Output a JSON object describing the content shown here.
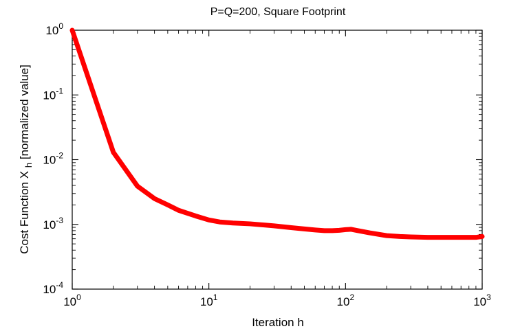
{
  "chart_data": {
    "type": "line",
    "title": "P=Q=200, Square Footprint",
    "xlabel": "Iteration h",
    "ylabel": {
      "prefix": "Cost Function X",
      "subscript": "h",
      "suffix": " [normalized value]"
    },
    "x_scale": "log",
    "y_scale": "log",
    "xlim": [
      1,
      1000
    ],
    "ylim": [
      0.0001,
      1
    ],
    "grid": false,
    "x_ticks": [
      {
        "value": 1,
        "base": "10",
        "exponent": "0"
      },
      {
        "value": 10,
        "base": "10",
        "exponent": "1"
      },
      {
        "value": 100,
        "base": "10",
        "exponent": "2"
      },
      {
        "value": 1000,
        "base": "10",
        "exponent": "3"
      }
    ],
    "y_ticks": [
      {
        "value": 1,
        "base": "10",
        "exponent": "0"
      },
      {
        "value": 0.1,
        "base": "10",
        "exponent": "-1"
      },
      {
        "value": 0.01,
        "base": "10",
        "exponent": "-2"
      },
      {
        "value": 0.001,
        "base": "10",
        "exponent": "-3"
      },
      {
        "value": 0.0001,
        "base": "10",
        "exponent": "-4"
      }
    ],
    "series": [
      {
        "color": "#ff0000",
        "x": [
          1,
          2,
          3,
          4,
          5,
          6,
          8,
          10,
          12,
          15,
          20,
          30,
          40,
          50,
          60,
          70,
          80,
          90,
          100,
          110,
          120,
          150,
          200,
          250,
          300,
          400,
          500,
          600,
          700,
          800,
          900,
          1000
        ],
        "y": [
          1,
          0.013,
          0.0039,
          0.0025,
          0.002,
          0.00165,
          0.00135,
          0.00117,
          0.00109,
          0.00105,
          0.00102,
          0.00095,
          0.00089,
          0.00085,
          0.00082,
          0.0008,
          0.0008,
          0.00081,
          0.00083,
          0.00084,
          0.00081,
          0.00074,
          0.00067,
          0.00065,
          0.00064,
          0.00063,
          0.00063,
          0.00063,
          0.00063,
          0.00063,
          0.00063,
          0.00065
        ]
      }
    ]
  }
}
